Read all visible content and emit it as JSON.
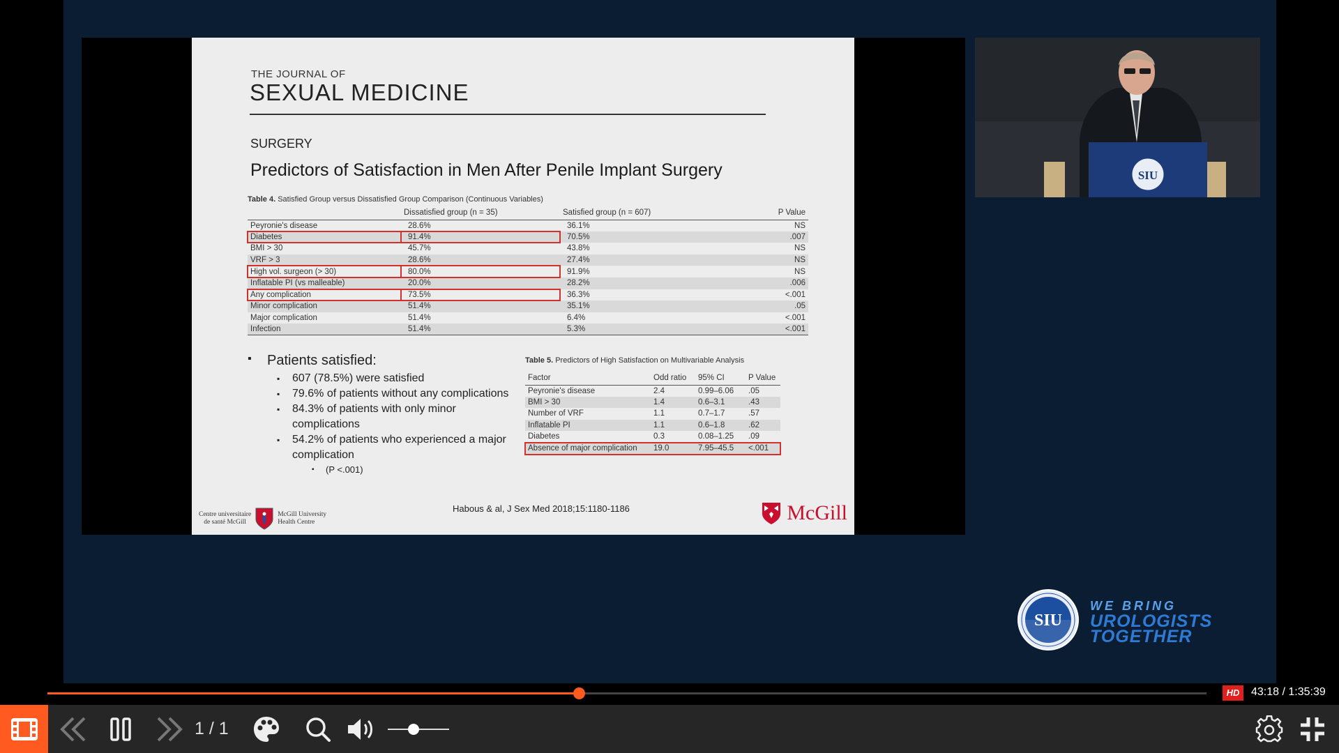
{
  "slide": {
    "journal_small": "THE JOURNAL OF",
    "journal_big": "SEXUAL MEDICINE",
    "section": "SURGERY",
    "title": "Predictors of Satisfaction in Men After Penile Implant Surgery",
    "table4": {
      "caption_bold": "Table 4.",
      "caption": "Satisfied Group versus Dissatisfied Group Comparison (Continuous Variables)",
      "headers": [
        "",
        "Dissatisfied group (n = 35)",
        "Satisfied group (n = 607)",
        "P Value"
      ],
      "rows": [
        {
          "label": "Peyronie's disease",
          "dis": "28.6%",
          "sat": "36.1%",
          "p": "NS",
          "highlight": false
        },
        {
          "label": "Diabetes",
          "dis": "91.4%",
          "sat": "70.5%",
          "p": ".007",
          "highlight": true
        },
        {
          "label": "BMI > 30",
          "dis": "45.7%",
          "sat": "43.8%",
          "p": "NS",
          "highlight": false
        },
        {
          "label": "VRF > 3",
          "dis": "28.6%",
          "sat": "27.4%",
          "p": "NS",
          "highlight": false
        },
        {
          "label": "High vol. surgeon (> 30)",
          "dis": "80.0%",
          "sat": "91.9%",
          "p": "NS",
          "highlight": true
        },
        {
          "label": "Inflatable PI (vs malleable)",
          "dis": "20.0%",
          "sat": "28.2%",
          "p": ".006",
          "highlight": false
        },
        {
          "label": "Any complication",
          "dis": "73.5%",
          "sat": "36.3%",
          "p": "<.001",
          "highlight": true
        },
        {
          "label": "Minor complication",
          "dis": "51.4%",
          "sat": "35.1%",
          "p": ".05",
          "highlight": false
        },
        {
          "label": "Major complication",
          "dis": "51.4%",
          "sat": "6.4%",
          "p": "<.001",
          "highlight": false
        },
        {
          "label": "Infection",
          "dis": "51.4%",
          "sat": "5.3%",
          "p": "<.001",
          "highlight": false
        }
      ]
    },
    "table5": {
      "caption_bold": "Table 5.",
      "caption": "Predictors of High Satisfaction on Multivariable Analysis",
      "headers": [
        "Factor",
        "Odd ratio",
        "95% CI",
        "P Value"
      ],
      "rows": [
        {
          "factor": "Peyronie's disease",
          "or": "2.4",
          "ci": "0.99–6.06",
          "p": ".05",
          "highlight": false
        },
        {
          "factor": "BMI > 30",
          "or": "1.4",
          "ci": "0.6–3.1",
          "p": ".43",
          "highlight": false
        },
        {
          "factor": "Number of VRF",
          "or": "1.1",
          "ci": "0.7–1.7",
          "p": ".57",
          "highlight": false
        },
        {
          "factor": "Inflatable PI",
          "or": "1.1",
          "ci": "0.6–1.8",
          "p": ".62",
          "highlight": false
        },
        {
          "factor": "Diabetes",
          "or": "0.3",
          "ci": "0.08–1.25",
          "p": ".09",
          "highlight": false
        },
        {
          "factor": "Absence of major complication",
          "or": "19.0",
          "ci": "7.95–45.5",
          "p": "<.001",
          "highlight": true
        }
      ]
    },
    "bullets": {
      "main": "Patients satisfied:",
      "items": [
        "607 (78.5%) were satisfied",
        "79.6% of patients without any complications",
        "84.3% of patients with only minor complications",
        "54.2% of patients who experienced a major complication"
      ],
      "sub": "(P <.001)"
    },
    "citation": "Habous & al, J Sex Med 2018;15:1180-1186",
    "muhc_left": [
      "Centre universitaire",
      "de santé McGill"
    ],
    "muhc_right": [
      "McGill University",
      "Health Centre"
    ],
    "mcgill": "McGill"
  },
  "branding": {
    "seal_text": "SIU",
    "tag_line1": "WE BRING",
    "tag_line2": "UROLOGISTS",
    "tag_line3": "TOGETHER"
  },
  "player": {
    "progress_fraction": 0.4585,
    "volume_fraction": 0.42,
    "hd_badge": "HD",
    "time": "43:18 / 1:35:39",
    "page": "1 / 1",
    "icons": [
      "slides-icon",
      "previous-icon",
      "pause-icon",
      "next-icon",
      "palette-icon",
      "zoom-icon",
      "volume-icon",
      "settings-icon",
      "exit-fullscreen-icon"
    ],
    "accent": "#ff5a1f"
  }
}
